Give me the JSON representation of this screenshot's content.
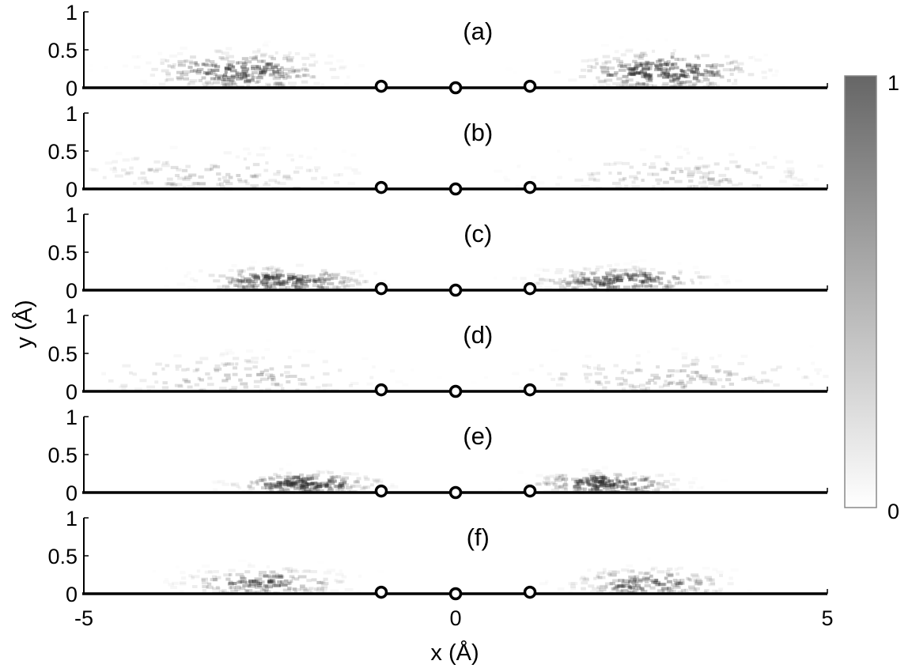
{
  "chart_data": {
    "type": "heatmap",
    "xlabel": "x (Å)",
    "ylabel": "y (Å)",
    "xlim": [
      -5,
      5
    ],
    "ylim": [
      0,
      1
    ],
    "x_ticks": [
      "-5",
      "0",
      "5"
    ],
    "y_ticks": [
      "0",
      "0.5",
      "1"
    ],
    "colorbar": {
      "min": 0,
      "max": 1,
      "min_label": "0",
      "max_label": "1"
    },
    "atoms": [
      {
        "x": -1.0,
        "y": 0.02
      },
      {
        "x": 0.0,
        "y": 0.0
      },
      {
        "x": 1.0,
        "y": 0.02
      }
    ],
    "panels": [
      {
        "label": "(a)",
        "clusters": [
          {
            "x": -2.9,
            "y": 0.22,
            "sx": 0.65,
            "sy": 0.14,
            "peak": 0.75,
            "n": 260
          },
          {
            "x": 2.8,
            "y": 0.22,
            "sx": 0.65,
            "sy": 0.14,
            "peak": 0.85,
            "n": 260
          }
        ]
      },
      {
        "label": "(b)",
        "clusters": [
          {
            "x": -3.2,
            "y": 0.18,
            "sx": 1.1,
            "sy": 0.18,
            "peak": 0.3,
            "n": 140
          },
          {
            "x": 3.0,
            "y": 0.18,
            "sx": 1.1,
            "sy": 0.18,
            "peak": 0.3,
            "n": 140
          }
        ]
      },
      {
        "label": "(c)",
        "clusters": [
          {
            "x": -2.3,
            "y": 0.13,
            "sx": 0.6,
            "sy": 0.09,
            "peak": 0.8,
            "n": 200
          },
          {
            "x": 2.2,
            "y": 0.13,
            "sx": 0.6,
            "sy": 0.09,
            "peak": 0.8,
            "n": 200
          }
        ]
      },
      {
        "label": "(d)",
        "clusters": [
          {
            "x": -3.0,
            "y": 0.18,
            "sx": 1.1,
            "sy": 0.17,
            "peak": 0.35,
            "n": 140
          },
          {
            "x": 3.0,
            "y": 0.18,
            "sx": 1.1,
            "sy": 0.17,
            "peak": 0.35,
            "n": 140
          }
        ]
      },
      {
        "label": "(e)",
        "clusters": [
          {
            "x": -2.0,
            "y": 0.12,
            "sx": 0.5,
            "sy": 0.08,
            "peak": 0.85,
            "n": 190
          },
          {
            "x": 2.0,
            "y": 0.12,
            "sx": 0.5,
            "sy": 0.08,
            "peak": 0.85,
            "n": 190
          }
        ]
      },
      {
        "label": "(f)",
        "clusters": [
          {
            "x": -2.6,
            "y": 0.14,
            "sx": 0.6,
            "sy": 0.11,
            "peak": 0.6,
            "n": 180
          },
          {
            "x": 2.6,
            "y": 0.14,
            "sx": 0.6,
            "sy": 0.11,
            "peak": 0.6,
            "n": 180
          }
        ]
      }
    ]
  }
}
